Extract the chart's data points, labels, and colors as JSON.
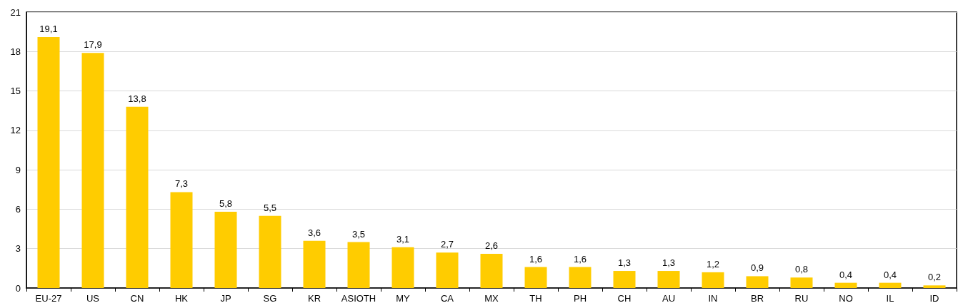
{
  "chart_data": {
    "type": "bar",
    "categories": [
      "EU-27",
      "US",
      "CN",
      "HK",
      "JP",
      "SG",
      "KR",
      "ASIOTH",
      "MY",
      "CA",
      "MX",
      "TH",
      "PH",
      "CH",
      "AU",
      "IN",
      "BR",
      "RU",
      "NO",
      "IL",
      "ID"
    ],
    "values": [
      19.1,
      17.9,
      13.8,
      7.3,
      5.8,
      5.5,
      3.6,
      3.5,
      3.1,
      2.7,
      2.6,
      1.6,
      1.6,
      1.3,
      1.3,
      1.2,
      0.9,
      0.8,
      0.4,
      0.4,
      0.2
    ],
    "value_labels": [
      "19,1",
      "17,9",
      "13,8",
      "7,3",
      "5,8",
      "5,5",
      "3,6",
      "3,5",
      "3,1",
      "2,7",
      "2,6",
      "1,6",
      "1,6",
      "1,3",
      "1,3",
      "1,2",
      "0,9",
      "0,8",
      "0,4",
      "0,4",
      "0,2"
    ],
    "color": "#ffcc00",
    "ylim": [
      0,
      21
    ],
    "yticks": [
      0,
      3,
      6,
      9,
      12,
      15,
      18,
      21
    ],
    "grid": "y"
  }
}
